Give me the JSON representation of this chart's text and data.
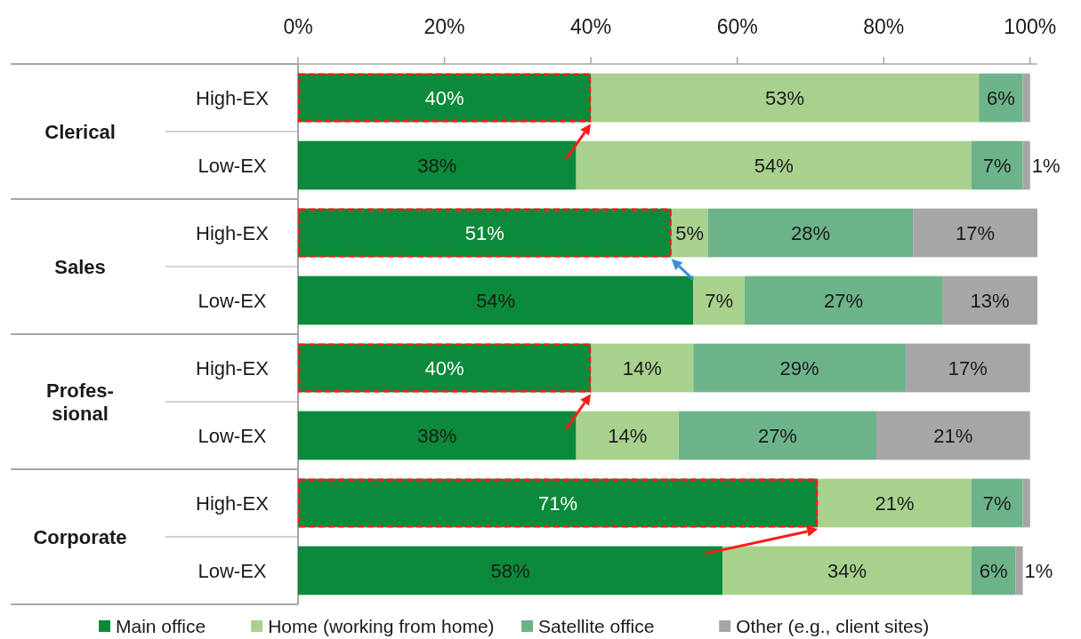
{
  "chart_data": {
    "type": "bar",
    "orientation": "horizontal",
    "stacked": true,
    "legend": "bottom",
    "categories": [
      "High-EX",
      "Low-EX",
      "High-EX",
      "Low-EX",
      "High-EX",
      "Low-EX",
      "High-EX",
      "Low-EX"
    ],
    "annotations": [
      "Clerical",
      "Sales",
      "Profes-sional",
      "Corporate"
    ],
    "xlim": [
      0,
      101
    ],
    "xticks": [
      {
        "value": 0,
        "label": "0%"
      },
      {
        "value": 20,
        "label": "20%"
      },
      {
        "value": 40,
        "label": "40%"
      },
      {
        "value": 60,
        "label": "60%"
      },
      {
        "value": 80,
        "label": "80%"
      },
      {
        "value": 100,
        "label": "100%"
      }
    ],
    "series": [
      {
        "name": "Main office",
        "color": "#0a8a3a",
        "values": [
          40,
          38,
          51,
          54,
          40,
          38,
          71,
          58
        ],
        "value_labels": [
          "40%",
          "38%",
          "51%",
          "54%",
          "40%",
          "38%",
          "71%",
          "58%"
        ]
      },
      {
        "name": "Home (working from home)",
        "color": "#a9d18e",
        "values": [
          53,
          54,
          5,
          7,
          14,
          14,
          21,
          34
        ],
        "value_labels": [
          "53%",
          "54%",
          "5%",
          "7%",
          "14%",
          "14%",
          "21%",
          "34%"
        ]
      },
      {
        "name": "Satellite office",
        "color": "#6db38a",
        "values": [
          6,
          7,
          28,
          27,
          29,
          27,
          7,
          6
        ],
        "value_labels": [
          "6%",
          "7%",
          "28%",
          "27%",
          "29%",
          "27%",
          "7%",
          "6%"
        ]
      },
      {
        "name": "Other (e.g., client sites)",
        "color": "#a6a6a6",
        "values": [
          1,
          1,
          17,
          13,
          17,
          21,
          1,
          1
        ],
        "value_labels": [
          null,
          "1%",
          "17%",
          "13%",
          "17%",
          "21%",
          null,
          "1%"
        ]
      }
    ]
  }
}
